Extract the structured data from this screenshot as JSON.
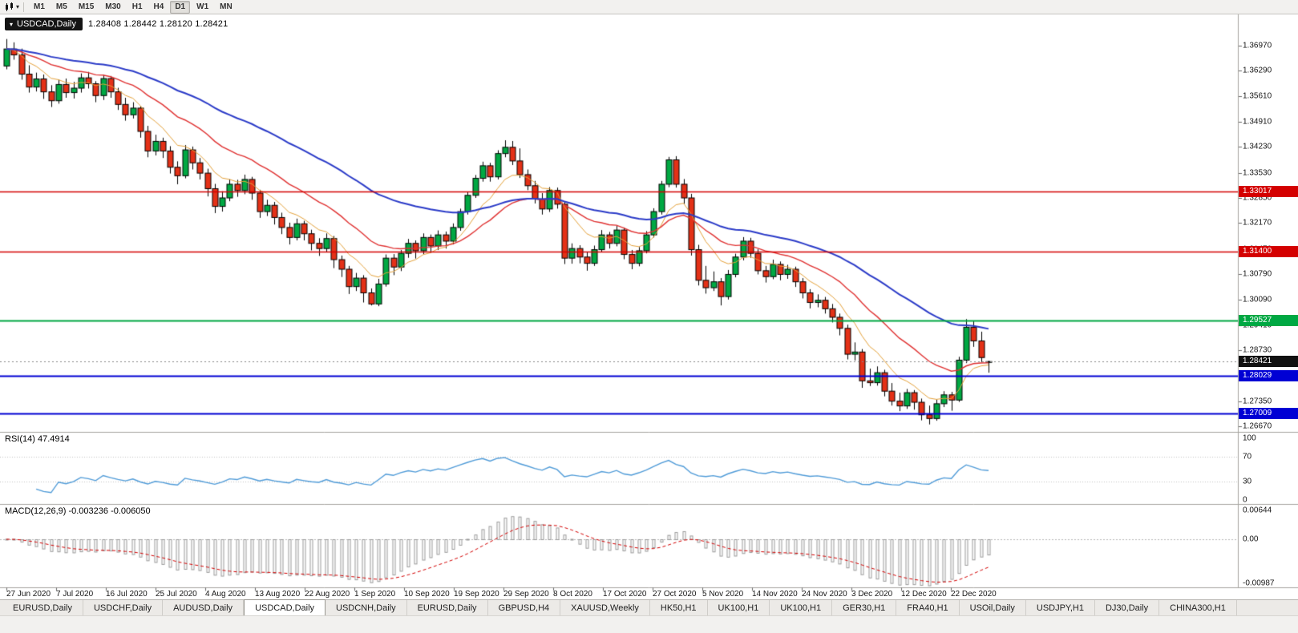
{
  "toolbar": {
    "timeframes": [
      "M1",
      "M5",
      "M15",
      "M30",
      "H1",
      "H4",
      "D1",
      "W1",
      "MN"
    ],
    "active_timeframe": "D1"
  },
  "chart_header": {
    "symbol": "USDCAD,Daily",
    "ohlc_text": "1.28408 1.28442 1.28120 1.28421"
  },
  "price_scale": {
    "labels": [
      "1.36970",
      "1.36290",
      "1.35610",
      "1.34910",
      "1.34230",
      "1.33530",
      "1.32850",
      "1.32170",
      "1.31470",
      "1.30790",
      "1.30090",
      "1.29410",
      "1.28730",
      "1.28030",
      "1.27350",
      "1.26670"
    ],
    "badges": [
      {
        "text": "1.33017",
        "price": 1.33017,
        "color": "#d40000",
        "type": "resistance"
      },
      {
        "text": "1.31400",
        "price": 1.314,
        "color": "#d40000",
        "type": "resistance"
      },
      {
        "text": "1.29527",
        "price": 1.29527,
        "color": "#00a843",
        "type": "level"
      },
      {
        "text": "1.28421",
        "price": 1.28421,
        "color": "#111111",
        "type": "current-price"
      },
      {
        "text": "1.28029",
        "price": 1.28029,
        "color": "#0000d4",
        "type": "support"
      },
      {
        "text": "1.27009",
        "price": 1.27009,
        "color": "#0000d4",
        "type": "support"
      }
    ]
  },
  "rsi_panel": {
    "label": "RSI(14) 47.4914",
    "period": 14,
    "value": 47.4914,
    "scale": [
      {
        "text": "100",
        "value": 100
      },
      {
        "text": "70",
        "value": 70
      },
      {
        "text": "30",
        "value": 30
      },
      {
        "text": "0",
        "value": 0
      }
    ]
  },
  "macd_panel": {
    "label": "MACD(12,26,9) -0.003236 -0.006050",
    "macd_value": -0.003236,
    "signal_value": -0.00605,
    "scale": [
      {
        "text": "0.00644",
        "value": 0.00644
      },
      {
        "text": "0.00",
        "value": 0
      },
      {
        "text": "-0.00987",
        "value": -0.00987
      }
    ]
  },
  "time_axis": {
    "labels": [
      "27 Jun 2020",
      "7 Jul 2020",
      "16 Jul 2020",
      "25 Jul 2020",
      "4 Aug 2020",
      "13 Aug 2020",
      "22 Aug 2020",
      "1 Sep 2020",
      "10 Sep 2020",
      "19 Sep 2020",
      "29 Sep 2020",
      "8 Oct 2020",
      "17 Oct 2020",
      "27 Oct 2020",
      "5 Nov 2020",
      "14 Nov 2020",
      "24 Nov 2020",
      "3 Dec 2020",
      "12 Dec 2020",
      "22 Dec 2020"
    ]
  },
  "tabs": {
    "items": [
      "EURUSD,Daily",
      "USDCHF,Daily",
      "AUDUSD,Daily",
      "USDCAD,Daily",
      "USDCNH,Daily",
      "EURUSD,Daily",
      "GBPUSD,H4",
      "XAUUSD,Weekly",
      "HK50,H1",
      "UK100,H1",
      "UK100,H1",
      "GER30,H1",
      "FRA40,H1",
      "USOil,Daily",
      "USDJPY,H1",
      "DJ30,Daily",
      "CHINA300,H1"
    ],
    "active_index": 3
  },
  "chart_data": {
    "type": "candlestick",
    "symbol": "USDCAD",
    "timeframe": "Daily",
    "y_axis": {
      "top_price": 1.37816,
      "bottom_price": 1.2654
    },
    "current_price": 1.28421,
    "style": {
      "bull_color": "#00a843",
      "bear_color": "#e43117",
      "outline_color": "#000000",
      "background": "#ffffff"
    },
    "moving_averages": [
      {
        "period": 8,
        "color": "#e5a23a",
        "width": 1
      },
      {
        "period": 20,
        "color": "#e03131",
        "width": 1.4
      },
      {
        "period": 45,
        "color": "#2b3bc8",
        "width": 2
      }
    ],
    "hlines": [
      {
        "price": 1.33017,
        "color": "#d40000",
        "width": 1.6,
        "type": "resistance"
      },
      {
        "price": 1.314,
        "color": "#d40000",
        "width": 1.6,
        "type": "resistance"
      },
      {
        "price": 1.29527,
        "color": "#00a843",
        "width": 2,
        "type": "level"
      },
      {
        "price": 1.28029,
        "color": "#0000d4",
        "width": 2,
        "type": "support"
      },
      {
        "price": 1.27009,
        "color": "#0000d4",
        "width": 2,
        "type": "support"
      }
    ],
    "rsi": {
      "period": 14,
      "levels": [
        70,
        30
      ],
      "color": "#4f9bd8"
    },
    "macd": {
      "fast": 12,
      "slow": 26,
      "signal": 9,
      "hist_color": "#9a9a9a",
      "signal_color": "#d40000"
    },
    "ohlc": [
      [
        1.3642,
        1.3715,
        1.3633,
        1.3688
      ],
      [
        1.3688,
        1.3706,
        1.3659,
        1.3672
      ],
      [
        1.3672,
        1.3689,
        1.3605,
        1.362
      ],
      [
        1.362,
        1.3644,
        1.357,
        1.3585
      ],
      [
        1.3585,
        1.3624,
        1.3573,
        1.3607
      ],
      [
        1.3607,
        1.3619,
        1.3553,
        1.3572
      ],
      [
        1.3572,
        1.359,
        1.3531,
        1.3548
      ],
      [
        1.3548,
        1.3605,
        1.354,
        1.3592
      ],
      [
        1.3592,
        1.3608,
        1.3556,
        1.357
      ],
      [
        1.357,
        1.3599,
        1.3554,
        1.3582
      ],
      [
        1.3582,
        1.3622,
        1.357,
        1.361
      ],
      [
        1.361,
        1.3626,
        1.3581,
        1.3594
      ],
      [
        1.3594,
        1.3601,
        1.3544,
        1.3562
      ],
      [
        1.3562,
        1.3618,
        1.355,
        1.3608
      ],
      [
        1.3608,
        1.3615,
        1.3556,
        1.3572
      ],
      [
        1.3572,
        1.3583,
        1.3523,
        1.3538
      ],
      [
        1.3538,
        1.3556,
        1.3494,
        1.351
      ],
      [
        1.351,
        1.3544,
        1.35,
        1.3528
      ],
      [
        1.3528,
        1.3533,
        1.3448,
        1.3465
      ],
      [
        1.3465,
        1.348,
        1.3395,
        1.3412
      ],
      [
        1.3412,
        1.3456,
        1.34,
        1.3438
      ],
      [
        1.3438,
        1.3448,
        1.3393,
        1.3412
      ],
      [
        1.3412,
        1.3425,
        1.3351,
        1.3368
      ],
      [
        1.3368,
        1.3384,
        1.3322,
        1.3345
      ],
      [
        1.3345,
        1.3428,
        1.3338,
        1.3415
      ],
      [
        1.3415,
        1.3424,
        1.3362,
        1.338
      ],
      [
        1.338,
        1.3393,
        1.3335,
        1.3352
      ],
      [
        1.3352,
        1.3364,
        1.3289,
        1.331
      ],
      [
        1.331,
        1.3323,
        1.3244,
        1.3262
      ],
      [
        1.3262,
        1.3303,
        1.3248,
        1.3285
      ],
      [
        1.3285,
        1.3335,
        1.3276,
        1.3322
      ],
      [
        1.3322,
        1.3334,
        1.3288,
        1.3305
      ],
      [
        1.3305,
        1.3348,
        1.3295,
        1.3335
      ],
      [
        1.3335,
        1.3342,
        1.328,
        1.3298
      ],
      [
        1.3298,
        1.3307,
        1.3231,
        1.3248
      ],
      [
        1.3248,
        1.328,
        1.3236,
        1.3265
      ],
      [
        1.3265,
        1.3274,
        1.3213,
        1.3232
      ],
      [
        1.3232,
        1.3245,
        1.3187,
        1.3205
      ],
      [
        1.3205,
        1.3218,
        1.3159,
        1.3178
      ],
      [
        1.3178,
        1.3229,
        1.317,
        1.3215
      ],
      [
        1.3215,
        1.3223,
        1.317,
        1.3188
      ],
      [
        1.3188,
        1.3199,
        1.3143,
        1.3162
      ],
      [
        1.3162,
        1.3176,
        1.3128,
        1.3148
      ],
      [
        1.3148,
        1.3189,
        1.3138,
        1.3175
      ],
      [
        1.3175,
        1.3182,
        1.3095,
        1.3118
      ],
      [
        1.3118,
        1.3129,
        1.3071,
        1.3092
      ],
      [
        1.3092,
        1.3101,
        1.3025,
        1.3045
      ],
      [
        1.3045,
        1.3082,
        1.3033,
        1.3068
      ],
      [
        1.3068,
        1.3076,
        1.3002,
        1.3028
      ],
      [
        1.3028,
        1.304,
        1.2994,
        1.2998
      ],
      [
        1.2998,
        1.3066,
        1.2992,
        1.3052
      ],
      [
        1.3052,
        1.3132,
        1.3045,
        1.3122
      ],
      [
        1.3122,
        1.3133,
        1.3076,
        1.3098
      ],
      [
        1.3098,
        1.3144,
        1.3087,
        1.3135
      ],
      [
        1.3135,
        1.3174,
        1.3123,
        1.3162
      ],
      [
        1.3162,
        1.317,
        1.3121,
        1.3142
      ],
      [
        1.3142,
        1.3189,
        1.3133,
        1.3178
      ],
      [
        1.3178,
        1.3186,
        1.3136,
        1.3155
      ],
      [
        1.3155,
        1.3197,
        1.3144,
        1.3185
      ],
      [
        1.3185,
        1.3194,
        1.3148,
        1.3168
      ],
      [
        1.3168,
        1.3216,
        1.3159,
        1.3205
      ],
      [
        1.3205,
        1.3256,
        1.3196,
        1.3248
      ],
      [
        1.3248,
        1.3301,
        1.324,
        1.3292
      ],
      [
        1.3292,
        1.3347,
        1.3285,
        1.3338
      ],
      [
        1.3338,
        1.3383,
        1.3329,
        1.3372
      ],
      [
        1.3372,
        1.338,
        1.3329,
        1.3342
      ],
      [
        1.3342,
        1.3414,
        1.3335,
        1.3405
      ],
      [
        1.3405,
        1.3441,
        1.3395,
        1.3422
      ],
      [
        1.3422,
        1.3439,
        1.3374,
        1.3385
      ],
      [
        1.3385,
        1.3419,
        1.3339,
        1.3348
      ],
      [
        1.3348,
        1.3362,
        1.3306,
        1.3318
      ],
      [
        1.3318,
        1.3331,
        1.327,
        1.3282
      ],
      [
        1.3282,
        1.3298,
        1.324,
        1.3255
      ],
      [
        1.3255,
        1.3314,
        1.3247,
        1.3305
      ],
      [
        1.3305,
        1.3313,
        1.3256,
        1.3268
      ],
      [
        1.3268,
        1.3276,
        1.3106,
        1.3122
      ],
      [
        1.3122,
        1.3162,
        1.3107,
        1.3148
      ],
      [
        1.3148,
        1.3157,
        1.3108,
        1.3125
      ],
      [
        1.3125,
        1.3139,
        1.3088,
        1.3108
      ],
      [
        1.3108,
        1.3156,
        1.3101,
        1.3145
      ],
      [
        1.3145,
        1.3198,
        1.3138,
        1.3185
      ],
      [
        1.3185,
        1.3193,
        1.3148,
        1.3162
      ],
      [
        1.3162,
        1.3209,
        1.3154,
        1.3198
      ],
      [
        1.3198,
        1.3205,
        1.3119,
        1.3132
      ],
      [
        1.3132,
        1.3144,
        1.3092,
        1.3108
      ],
      [
        1.3108,
        1.3152,
        1.31,
        1.3142
      ],
      [
        1.3142,
        1.3195,
        1.3135,
        1.3185
      ],
      [
        1.3185,
        1.3257,
        1.3178,
        1.3248
      ],
      [
        1.3248,
        1.3331,
        1.324,
        1.3322
      ],
      [
        1.3322,
        1.3396,
        1.3314,
        1.3388
      ],
      [
        1.3388,
        1.3398,
        1.3313,
        1.3322
      ],
      [
        1.3322,
        1.3336,
        1.3269,
        1.3285
      ],
      [
        1.3285,
        1.3296,
        1.3129,
        1.3145
      ],
      [
        1.3145,
        1.3158,
        1.3048,
        1.3062
      ],
      [
        1.3062,
        1.3101,
        1.3026,
        1.3042
      ],
      [
        1.3042,
        1.3086,
        1.3033,
        1.3058
      ],
      [
        1.3058,
        1.3068,
        1.2994,
        1.3018
      ],
      [
        1.3018,
        1.309,
        1.301,
        1.3078
      ],
      [
        1.3078,
        1.3134,
        1.307,
        1.3125
      ],
      [
        1.3125,
        1.3179,
        1.3116,
        1.3168
      ],
      [
        1.3168,
        1.3177,
        1.3123,
        1.3135
      ],
      [
        1.3135,
        1.3146,
        1.3078,
        1.3088
      ],
      [
        1.3088,
        1.3101,
        1.3056,
        1.3072
      ],
      [
        1.3072,
        1.3118,
        1.3065,
        1.3105
      ],
      [
        1.3105,
        1.3113,
        1.3062,
        1.3078
      ],
      [
        1.3078,
        1.3104,
        1.3066,
        1.3092
      ],
      [
        1.3092,
        1.3099,
        1.3044,
        1.3058
      ],
      [
        1.3058,
        1.3068,
        1.3013,
        1.3028
      ],
      [
        1.3028,
        1.3038,
        1.2986,
        1.3002
      ],
      [
        1.3002,
        1.3024,
        1.2989,
        1.3008
      ],
      [
        1.3008,
        1.3017,
        1.2972,
        1.2985
      ],
      [
        1.2985,
        1.2998,
        1.2948,
        1.2962
      ],
      [
        1.2962,
        1.2972,
        1.2913,
        1.2932
      ],
      [
        1.2932,
        1.2942,
        1.2848,
        1.2862
      ],
      [
        1.2862,
        1.2894,
        1.2845,
        1.2868
      ],
      [
        1.2868,
        1.2876,
        1.2771,
        1.279
      ],
      [
        1.279,
        1.2823,
        1.2776,
        1.2785
      ],
      [
        1.2785,
        1.2829,
        1.2777,
        1.2812
      ],
      [
        1.2812,
        1.282,
        1.2748,
        1.2762
      ],
      [
        1.2762,
        1.2784,
        1.2723,
        1.2735
      ],
      [
        1.2735,
        1.2758,
        1.2708,
        1.2722
      ],
      [
        1.2722,
        1.2768,
        1.2714,
        1.2758
      ],
      [
        1.2758,
        1.2765,
        1.2712,
        1.2732
      ],
      [
        1.2732,
        1.2742,
        1.2683,
        1.2698
      ],
      [
        1.2698,
        1.2723,
        1.2672,
        1.2688
      ],
      [
        1.2688,
        1.2739,
        1.2682,
        1.2728
      ],
      [
        1.2728,
        1.2762,
        1.2719,
        1.2752
      ],
      [
        1.2752,
        1.276,
        1.2709,
        1.2738
      ],
      [
        1.2738,
        1.2855,
        1.2733,
        1.2846
      ],
      [
        1.2846,
        1.2957,
        1.2838,
        1.2935
      ],
      [
        1.2935,
        1.2952,
        1.2882,
        1.2898
      ],
      [
        1.2898,
        1.2923,
        1.2841,
        1.2853
      ],
      [
        1.28408,
        1.28442,
        1.2812,
        1.28421
      ]
    ]
  }
}
